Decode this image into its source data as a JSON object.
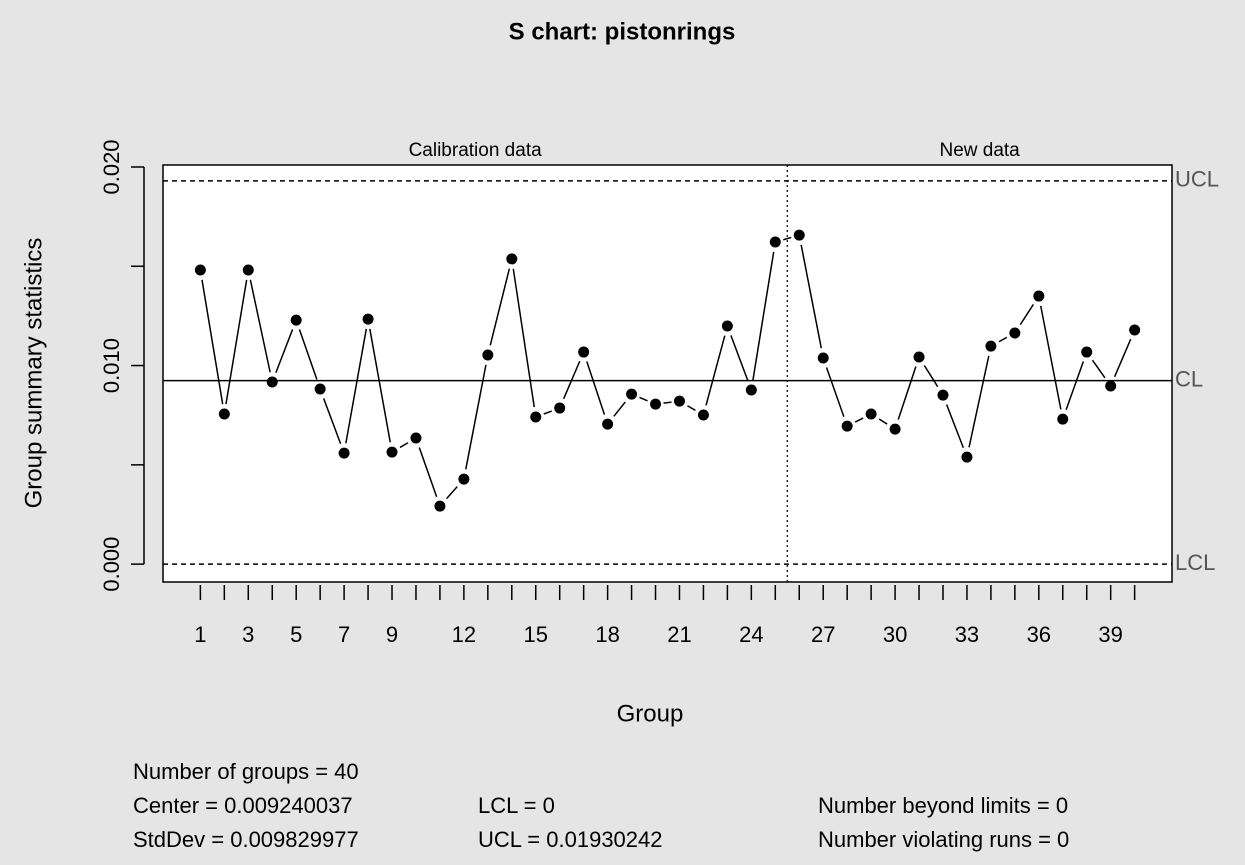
{
  "chart_data": {
    "type": "line",
    "title": "S chart: pistonrings",
    "x_label": "Group",
    "y_label": "Group summary statistics",
    "categories": [
      1,
      null,
      3,
      null,
      5,
      null,
      7,
      null,
      9,
      null,
      null,
      12,
      null,
      null,
      15,
      null,
      null,
      18,
      null,
      null,
      21,
      null,
      null,
      24,
      null,
      null,
      27,
      null,
      null,
      30,
      null,
      null,
      33,
      null,
      null,
      36,
      null,
      null,
      39,
      null
    ],
    "values": [
      0.01481,
      0.00756,
      0.01481,
      0.00917,
      0.01229,
      0.00882,
      0.00559,
      0.01234,
      0.00564,
      0.00635,
      0.00292,
      0.00428,
      0.01053,
      0.01537,
      0.00741,
      0.00786,
      0.01068,
      0.00705,
      0.00856,
      0.00806,
      0.00821,
      0.00751,
      0.01199,
      0.00877,
      0.01622,
      0.01657,
      0.01038,
      0.00695,
      0.00756,
      0.0068,
      0.01043,
      0.00851,
      0.00539,
      0.01098,
      0.01164,
      0.0135,
      0.0073,
      0.01068,
      0.00897,
      0.01179
    ],
    "color": "#000000",
    "ylim": [
      -0.0009,
      0.0201
    ],
    "yticks": [
      {
        "value": 0,
        "label": "0.000"
      },
      {
        "value": 0.005,
        "label": null
      },
      {
        "value": 0.01,
        "label": "0.010"
      },
      {
        "value": 0.015,
        "label": null
      },
      {
        "value": 0.02,
        "label": "0.020"
      }
    ],
    "limits": [
      {
        "label": "UCL",
        "value": 0.01930242,
        "style": "dashed"
      },
      {
        "label": "CL",
        "value": 0.009240037,
        "style": "solid"
      },
      {
        "label": "LCL",
        "value": 0,
        "style": "dashed"
      }
    ],
    "sections": [
      "Calibration data",
      "New data"
    ],
    "new_data_start": 26,
    "stats": [
      "Number of groups = 40",
      "Center = 0.009240037",
      "StdDev = 0.009829977",
      "LCL = 0",
      "UCL = 0.01930242",
      "Number beyond limits = 0",
      "Number violating runs = 0"
    ]
  }
}
